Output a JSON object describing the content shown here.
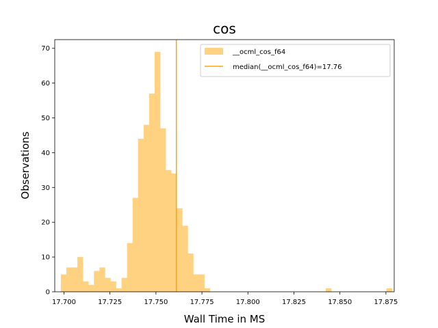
{
  "chart_data": {
    "type": "bar",
    "title": "cos",
    "xlabel": "Wall Time in MS",
    "ylabel": "Observations",
    "xlim": [
      17.695,
      17.8795
    ],
    "ylim": [
      0,
      72.5
    ],
    "xticks": [
      17.7,
      17.725,
      17.75,
      17.775,
      17.8,
      17.825,
      17.85,
      17.875
    ],
    "xtick_labels": [
      "17.700",
      "17.725",
      "17.750",
      "17.775",
      "17.800",
      "17.825",
      "17.850",
      "17.875"
    ],
    "yticks": [
      0,
      10,
      20,
      30,
      40,
      50,
      60,
      70
    ],
    "ytick_labels": [
      "0",
      "10",
      "20",
      "30",
      "40",
      "50",
      "60",
      "70"
    ],
    "grid": false,
    "legend_position": "top-right",
    "bin_start": 17.6983,
    "bin_width": 0.003,
    "series": [
      {
        "name": "__ocml_cos_f64",
        "color": "#fed280",
        "counts": [
          5,
          7,
          7,
          10,
          3,
          2,
          6,
          7,
          4,
          3,
          1,
          4,
          14,
          27,
          44,
          48,
          57,
          69,
          47,
          35,
          34,
          24,
          19,
          11,
          5,
          5,
          1,
          0,
          0,
          0,
          0,
          0,
          0,
          0,
          0,
          0,
          0,
          0,
          0,
          0,
          0,
          0,
          0,
          0,
          0,
          0,
          0,
          0,
          1,
          0,
          0,
          0,
          0,
          0,
          0,
          0,
          0,
          0,
          0,
          1
        ]
      }
    ],
    "median": {
      "label": "median(__ocml_cos_f64)=17.76",
      "value": 17.7611,
      "color": "#ffa500"
    }
  }
}
